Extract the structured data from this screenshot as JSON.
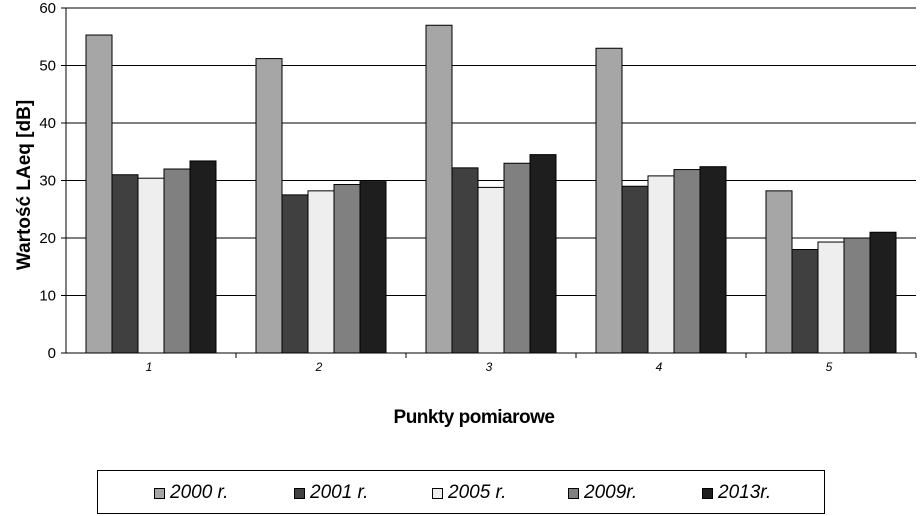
{
  "chart_data": {
    "type": "bar",
    "title": "",
    "xlabel": "Punkty pomiarowe",
    "ylabel": "Wartość LAeq  [dB]",
    "ylim": [
      0,
      60
    ],
    "yticks": [
      "0",
      "10",
      "20",
      "30",
      "40",
      "50",
      "60"
    ],
    "grid": true,
    "legend_position": "bottom",
    "categories": [
      "1",
      "2",
      "3",
      "4",
      "5"
    ],
    "series": [
      {
        "name": "2000 r.",
        "color": "#A6A6A6",
        "values": [
          55.3,
          51.2,
          57.0,
          53.0,
          28.2
        ]
      },
      {
        "name": "2001 r.",
        "color": "#404040",
        "values": [
          31.0,
          27.5,
          32.2,
          29.0,
          18.0
        ]
      },
      {
        "name": "2005 r.",
        "color": "#EEEEEE",
        "values": [
          30.4,
          28.2,
          28.8,
          30.8,
          19.3
        ]
      },
      {
        "name": "2009r.",
        "color": "#808080",
        "values": [
          32.0,
          29.3,
          33.0,
          31.9,
          20.0
        ]
      },
      {
        "name": "2013r.",
        "color": "#1E1E1E",
        "values": [
          33.4,
          29.8,
          34.5,
          32.4,
          21.0
        ]
      }
    ]
  }
}
